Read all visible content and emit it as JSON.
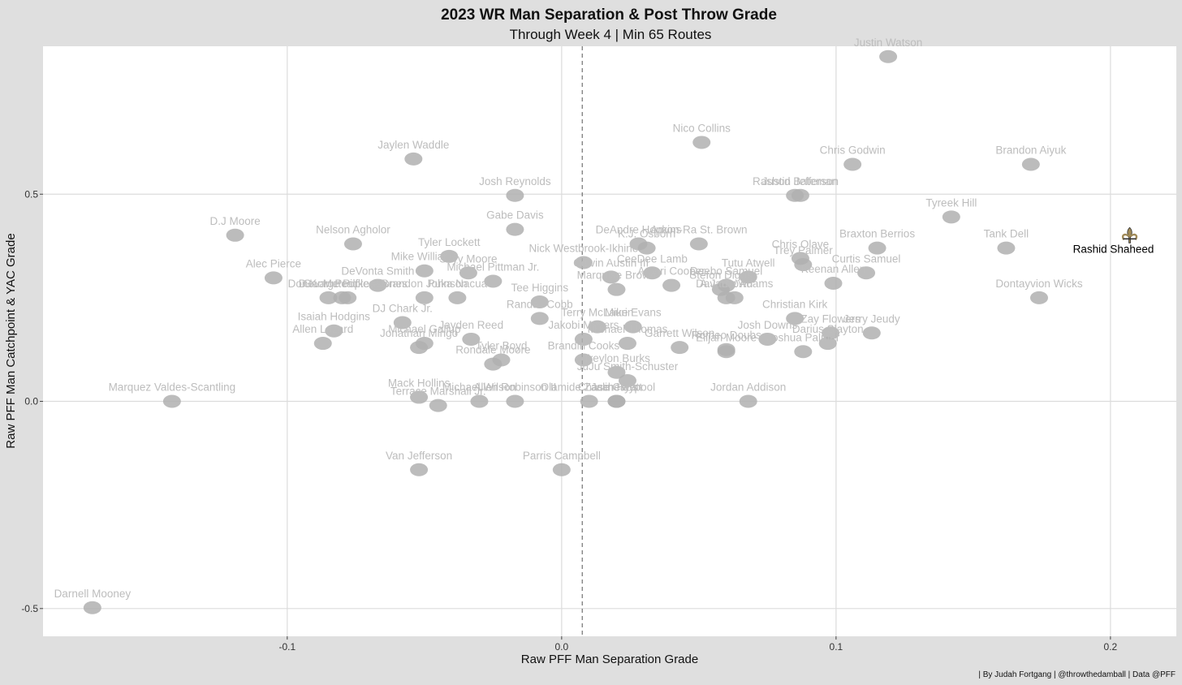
{
  "chart_data": {
    "type": "scatter",
    "title": "2023 WR Man Separation & Post Throw Grade",
    "subtitle": "Through Week 4 | Min 65 Routes",
    "xlabel": "Raw PFF Man Separation Grade",
    "ylabel": "Raw PFF Man Catchpoint & YAC Grade",
    "caption": "| By Judah Fortgang | @throwthedamball | Data @PFF",
    "xlim": [
      -0.189,
      0.224
    ],
    "ylim": [
      -0.567,
      0.857
    ],
    "xticks": [
      -0.1,
      0.0,
      0.1,
      0.2
    ],
    "xtick_labels": [
      "-0.1",
      "0.0",
      "0.1",
      "0.2"
    ],
    "yticks": [
      -0.5,
      0.0,
      0.5
    ],
    "ytick_labels": [
      "-0.5",
      "0.0",
      "0.5"
    ],
    "grid": true,
    "reference_line": {
      "axis": "x",
      "value": 0.0075,
      "style": "dashed"
    },
    "highlight_color": "#000000",
    "dim_color": "#bdbdbd",
    "marker_color": "#b0b0b0",
    "saints_gold": "#a08a58",
    "points": [
      {
        "name": "Justin Watson",
        "x": 0.119,
        "y": 0.832
      },
      {
        "name": "Jaylen Waddle",
        "x": -0.054,
        "y": 0.585
      },
      {
        "name": "Nico Collins",
        "x": 0.051,
        "y": 0.625
      },
      {
        "name": "Brandon Aiyuk",
        "x": 0.171,
        "y": 0.572
      },
      {
        "name": "Chris Godwin",
        "x": 0.106,
        "y": 0.572
      },
      {
        "name": "Josh Reynolds",
        "x": -0.017,
        "y": 0.497
      },
      {
        "name": "Rashod Bateman",
        "x": 0.085,
        "y": 0.497
      },
      {
        "name": "Justin Jefferson",
        "x": 0.087,
        "y": 0.497
      },
      {
        "name": "Tyreek Hill",
        "x": 0.142,
        "y": 0.445
      },
      {
        "name": "D.J Moore",
        "x": -0.119,
        "y": 0.401
      },
      {
        "name": "Gabe Davis",
        "x": -0.017,
        "y": 0.415
      },
      {
        "name": "DeAndre Hopkins",
        "x": 0.028,
        "y": 0.38
      },
      {
        "name": "Amon-Ra St. Brown",
        "x": 0.05,
        "y": 0.38
      },
      {
        "name": "Nelson Agholor",
        "x": -0.076,
        "y": 0.38
      },
      {
        "name": "K.J. Osborn",
        "x": 0.031,
        "y": 0.37
      },
      {
        "name": "Braxton Berrios",
        "x": 0.115,
        "y": 0.37
      },
      {
        "name": "Tank Dell",
        "x": 0.162,
        "y": 0.37
      },
      {
        "name": "Rashid Shaheed",
        "x": 0.207,
        "y": 0.4,
        "highlight": true
      },
      {
        "name": "Nick Westbrook-Ikhine",
        "x": 0.008,
        "y": 0.335
      },
      {
        "name": "Tyler Lockett",
        "x": -0.041,
        "y": 0.35
      },
      {
        "name": "Chris Olave",
        "x": 0.087,
        "y": 0.345
      },
      {
        "name": "CeeDee Lamb",
        "x": 0.033,
        "y": 0.31
      },
      {
        "name": "Tutu Atwell",
        "x": 0.068,
        "y": 0.3
      },
      {
        "name": "Curtis Samuel",
        "x": 0.111,
        "y": 0.31
      },
      {
        "name": "Mike Williams",
        "x": -0.05,
        "y": 0.315
      },
      {
        "name": "Skyy Moore",
        "x": -0.034,
        "y": 0.31
      },
      {
        "name": "Alec Pierce",
        "x": -0.105,
        "y": 0.298
      },
      {
        "name": "Trey Palmer",
        "x": 0.088,
        "y": 0.33
      },
      {
        "name": "Deebo Samuel",
        "x": 0.06,
        "y": 0.28
      },
      {
        "name": "DeVonta Smith",
        "x": -0.067,
        "y": 0.28
      },
      {
        "name": "Michael Pittman Jr.",
        "x": -0.025,
        "y": 0.29
      },
      {
        "name": "Calvin Austin III",
        "x": 0.018,
        "y": 0.3
      },
      {
        "name": "Keenan Allen",
        "x": 0.099,
        "y": 0.285
      },
      {
        "name": "George Pickens",
        "x": -0.08,
        "y": 0.25
      },
      {
        "name": "D.K. Metcalf",
        "x": -0.085,
        "y": 0.25
      },
      {
        "name": "Puka Nacua",
        "x": -0.038,
        "y": 0.25
      },
      {
        "name": "Marquise Brown",
        "x": 0.02,
        "y": 0.27
      },
      {
        "name": "Amari Cooper",
        "x": 0.04,
        "y": 0.28
      },
      {
        "name": "Stefon Diggs",
        "x": 0.058,
        "y": 0.27
      },
      {
        "name": "Dontayvion Wicks",
        "x": 0.174,
        "y": 0.25
      },
      {
        "name": "Donovan Peoples-Jones",
        "x": -0.078,
        "y": 0.25
      },
      {
        "name": "Brandon Johnson",
        "x": -0.05,
        "y": 0.25
      },
      {
        "name": "Tee Higgins",
        "x": -0.008,
        "y": 0.24
      },
      {
        "name": "A.J. Brown",
        "x": 0.06,
        "y": 0.25
      },
      {
        "name": "Davante Adams",
        "x": 0.063,
        "y": 0.25
      },
      {
        "name": "Randall Cobb",
        "x": -0.008,
        "y": 0.2
      },
      {
        "name": "Christian Kirk",
        "x": 0.085,
        "y": 0.2
      },
      {
        "name": "Isaiah Hodgins",
        "x": -0.083,
        "y": 0.17
      },
      {
        "name": "DJ Chark Jr.",
        "x": -0.058,
        "y": 0.19
      },
      {
        "name": "Terry McLaurin",
        "x": 0.013,
        "y": 0.18
      },
      {
        "name": "Mike Evans",
        "x": 0.026,
        "y": 0.18
      },
      {
        "name": "Jayden Reed",
        "x": -0.033,
        "y": 0.15
      },
      {
        "name": "Josh Downs",
        "x": 0.075,
        "y": 0.15
      },
      {
        "name": "Zay Flowers",
        "x": 0.098,
        "y": 0.165
      },
      {
        "name": "Jerry Jeudy",
        "x": 0.113,
        "y": 0.165
      },
      {
        "name": "Allen Lazard",
        "x": -0.087,
        "y": 0.14
      },
      {
        "name": "Michael Gallup",
        "x": -0.05,
        "y": 0.14
      },
      {
        "name": "Jakobi Meyers",
        "x": 0.008,
        "y": 0.15
      },
      {
        "name": "Michael Thomas",
        "x": 0.024,
        "y": 0.14
      },
      {
        "name": "Darius Slayton",
        "x": 0.097,
        "y": 0.14
      },
      {
        "name": "Romeo Doubs",
        "x": 0.06,
        "y": 0.125
      },
      {
        "name": "Garrett Wilson",
        "x": 0.043,
        "y": 0.13
      },
      {
        "name": "Jonathan Mingo",
        "x": -0.052,
        "y": 0.13
      },
      {
        "name": "Tyler Boyd",
        "x": -0.022,
        "y": 0.1
      },
      {
        "name": "Brandin Cooks",
        "x": 0.008,
        "y": 0.1
      },
      {
        "name": "Joshua Palmer",
        "x": 0.088,
        "y": 0.12
      },
      {
        "name": "Elijah Moore",
        "x": 0.06,
        "y": 0.12
      },
      {
        "name": "Treylon Burks",
        "x": 0.02,
        "y": 0.07
      },
      {
        "name": "Rondale Moore",
        "x": -0.025,
        "y": 0.09
      },
      {
        "name": "JuJu Smith-Schuster",
        "x": 0.024,
        "y": 0.05
      },
      {
        "name": "Mack Hollins",
        "x": -0.052,
        "y": 0.01
      },
      {
        "name": "Michael Wilson",
        "x": -0.03,
        "y": 0.0
      },
      {
        "name": "Allen Robinson II",
        "x": -0.017,
        "y": 0.0
      },
      {
        "name": "Jalin Hyatt",
        "x": 0.02,
        "y": 0.0
      },
      {
        "name": "Jordan Addison",
        "x": 0.068,
        "y": 0.0
      },
      {
        "name": "Terrace Marshall Jr.",
        "x": -0.045,
        "y": -0.01
      },
      {
        "name": "Olamide Zaccheaus",
        "x": 0.01,
        "y": 0.0
      },
      {
        "name": "Chase Claypool",
        "x": 0.02,
        "y": 0.0
      },
      {
        "name": "Marquez Valdes-Scantling",
        "x": -0.142,
        "y": 0.0
      },
      {
        "name": "Van Jefferson",
        "x": -0.052,
        "y": -0.165
      },
      {
        "name": "Parris Campbell",
        "x": 0.0,
        "y": -0.165
      },
      {
        "name": "Darnell Mooney",
        "x": -0.171,
        "y": -0.498
      }
    ]
  }
}
